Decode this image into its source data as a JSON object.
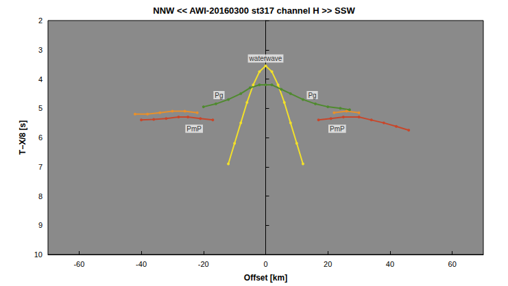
{
  "chart_data": {
    "type": "line",
    "title": "NNW << AWI-20160300 st317 channel H >> SSW",
    "x_label": "Offset [km]",
    "y_label": "T−X/8 [s]",
    "xlim": [
      -70,
      70
    ],
    "xticks": [
      -60,
      -40,
      -20,
      0,
      20,
      40,
      60
    ],
    "ylim": [
      2,
      10
    ],
    "yticks": [
      2,
      3,
      4,
      5,
      6,
      7,
      8,
      9,
      10
    ],
    "grid": false,
    "marker": "circle",
    "series": [
      {
        "color": "#f2e02a",
        "x": [
          -12,
          -10,
          -8,
          -6,
          -4,
          -2,
          0,
          2,
          4,
          6,
          8,
          10,
          12
        ],
        "values": [
          6.9,
          6.2,
          5.5,
          4.8,
          4.2,
          3.75,
          3.55,
          3.75,
          4.2,
          4.8,
          5.5,
          6.2,
          6.9
        ]
      },
      {
        "color": "#4f8a2e",
        "x": [
          -20,
          -16,
          -12,
          -8,
          -5,
          -2,
          0,
          2,
          5,
          8,
          12,
          16,
          20,
          24,
          27
        ],
        "values": [
          4.95,
          4.85,
          4.7,
          4.5,
          4.3,
          4.2,
          4.2,
          4.2,
          4.35,
          4.5,
          4.7,
          4.85,
          4.95,
          5.0,
          5.05
        ]
      },
      {
        "color": "#e8902a",
        "x": [
          -42,
          -38,
          -34,
          -30,
          -26,
          -22,
          null,
          22,
          26,
          30
        ],
        "values": [
          5.2,
          5.2,
          5.15,
          5.1,
          5.1,
          5.15,
          null,
          5.15,
          5.1,
          5.15
        ]
      },
      {
        "color": "#c8462a",
        "x": [
          -40,
          -36,
          -32,
          -28,
          -25,
          -21,
          -17,
          null,
          17,
          21,
          25,
          30,
          34,
          38,
          42,
          46
        ],
        "values": [
          5.4,
          5.38,
          5.35,
          5.3,
          5.3,
          5.35,
          5.4,
          null,
          5.4,
          5.35,
          5.3,
          5.3,
          5.4,
          5.5,
          5.62,
          5.75
        ]
      }
    ],
    "annotations": [
      {
        "text": "waterwave",
        "x": 0,
        "y": 3.3
      },
      {
        "text": "Pg",
        "x": -15,
        "y": 4.55
      },
      {
        "text": "Pg",
        "x": 15,
        "y": 4.55
      },
      {
        "text": "PmP",
        "x": -23,
        "y": 5.7
      },
      {
        "text": "PmP",
        "x": 23,
        "y": 5.7
      }
    ]
  }
}
